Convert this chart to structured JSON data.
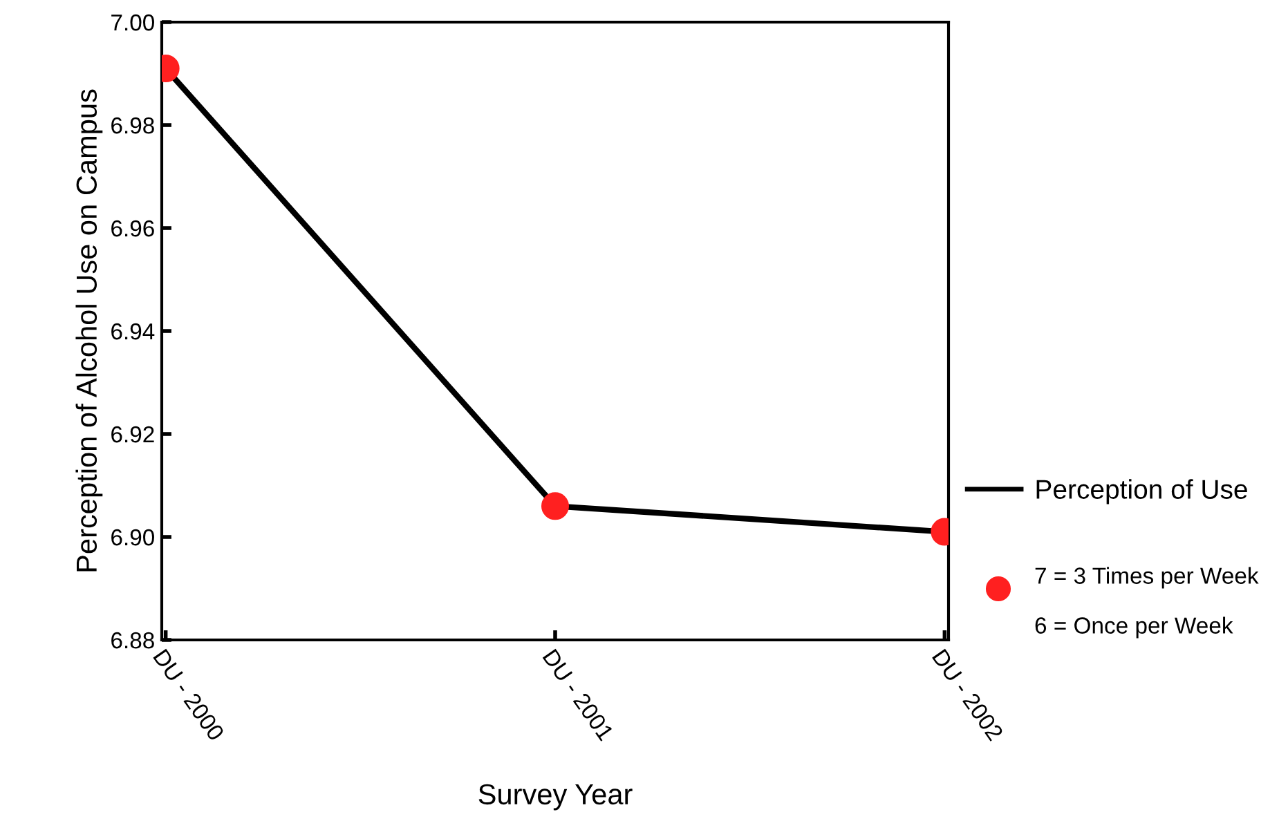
{
  "chart_data": {
    "type": "line",
    "xlabel": "Survey Year",
    "ylabel": "Perception of Alcohol Use on Campus",
    "categories": [
      "DU - 2000",
      "DU - 2001",
      "DU - 2002"
    ],
    "series": [
      {
        "name": "Perception of Use",
        "color": "#000000",
        "colors": [
          "#ff2020",
          "#ff2020",
          "#ff2020"
        ],
        "values": [
          6.991,
          6.906,
          6.901
        ]
      }
    ],
    "ylim": [
      6.88,
      7.0
    ],
    "yticks": [
      {
        "value": 6.88,
        "label": "6.88"
      },
      {
        "value": 6.9,
        "label": "6.90"
      },
      {
        "value": 6.92,
        "label": "6.92"
      },
      {
        "value": 6.94,
        "label": "6.94"
      },
      {
        "value": 6.96,
        "label": "6.96"
      },
      {
        "value": 6.98,
        "label": "6.98"
      },
      {
        "value": 7.0,
        "label": "7.00"
      }
    ],
    "grid": false,
    "legend": "right",
    "marker": "circle",
    "line_style": "solid",
    "annotations": [
      "7 = 3 Times per Week",
      "6 = Once per Week"
    ]
  }
}
